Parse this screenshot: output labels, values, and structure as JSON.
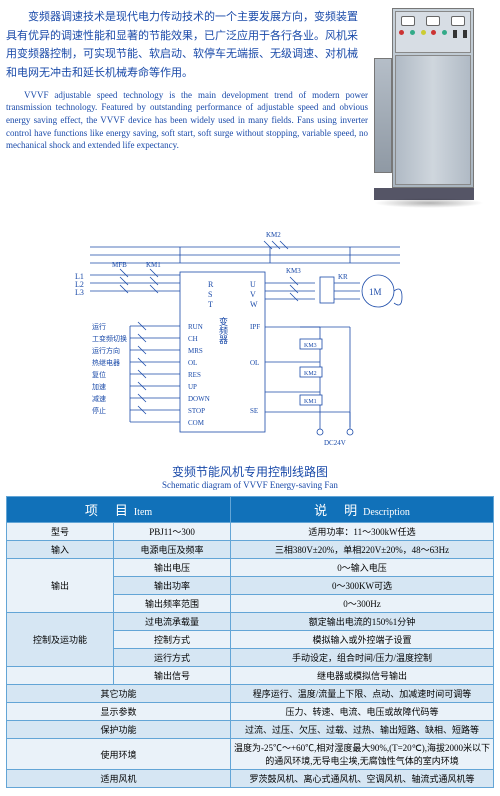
{
  "text": {
    "cn_para": "变频器调速技术是现代电力传动技术的一个主要发展方向，变频装置具有优异的调速性能和显著的节能效果，已广泛应用于各行各业。风机采用变频器控制，可实现节能、软启动、软停车无端振、无级调速、对机械和电网无冲击和延长机械寿命等作用。",
    "en_para": "VVVF adjustable speed technology is the main development trend of modern power transmission technology. Featured by outstanding performance of adjustable speed and obvious energy saving effect, the VVVF device has been widely used in many fields. Fans using inverter control have functions like energy saving, soft start, soft surge without stopping, variable speed, no mechanical shock and extended life expectancy.",
    "caption_cn": "变频节能风机专用控制线路图",
    "caption_en": "Schematic diagram of VVVF Energy-saving Fan"
  },
  "diagram": {
    "left_lines": [
      "L1",
      "L2",
      "L3"
    ],
    "top_labels": [
      "MFB",
      "KM1",
      "KM2"
    ],
    "right_labels": [
      "KM3",
      "KR",
      "1M"
    ],
    "inverter_cn": "变频器",
    "inverter_left": [
      "R",
      "S",
      "T"
    ],
    "inverter_right": [
      "U",
      "V",
      "W"
    ],
    "side_rows_cn": [
      "运行",
      "工变频切换",
      "运行方向",
      "热继电器",
      "复位",
      "加速",
      "减速",
      "停止"
    ],
    "side_rows_en": [
      "RUN",
      "CH",
      "MRS",
      "OL",
      "RES",
      "UP",
      "DOWN",
      "STOP",
      "COM"
    ],
    "out_pins": [
      "IPF",
      "OL",
      "SE"
    ],
    "relays": [
      "KM3",
      "KM2",
      "KM1"
    ],
    "dc": "DC24V",
    "colors": {
      "line": "#1a4aa9",
      "text": "#1a4aa9"
    }
  },
  "table": {
    "head_item_cn": "项　目",
    "head_item_en": "Item",
    "head_desc_cn": "说　明",
    "head_desc_en": "Description",
    "rows": [
      {
        "c1": "型号",
        "c2": "PBJ11～300",
        "c3": "适用功率：11～300kW任选",
        "cls": "odd"
      },
      {
        "c1": "输入",
        "c2": "电源电压及频率",
        "c3": "三相380V±20%，单相220V±20%，48～63Hz",
        "cls": "even"
      },
      {
        "c1": "",
        "c2": "输出电压",
        "c3": "0～输入电压",
        "cls": "odd",
        "merge_start": true,
        "merge_label": "输出",
        "merge_span": 3
      },
      {
        "c1": "",
        "c2": "输出功率",
        "c3": "0～300KW可选",
        "cls": "even"
      },
      {
        "c1": "",
        "c2": "输出频率范围",
        "c3": "0～300Hz",
        "cls": "odd"
      },
      {
        "c1": "",
        "c2": "过电流承载量",
        "c3": "额定输出电流的150%1分钟",
        "cls": "even",
        "merge_start": true,
        "merge_label": "控制及运功能",
        "merge_span": 3
      },
      {
        "c1": "",
        "c2": "控制方式",
        "c3": "模拟输入或外控端子设置",
        "cls": "odd"
      },
      {
        "c1": "",
        "c2": "运行方式",
        "c3": "手动设定，组合时间/压力/温度控制",
        "cls": "even"
      },
      {
        "c1": "",
        "c2": "输出信号",
        "c3": "继电器或模拟信号输出",
        "cls": "odd",
        "merge_start": true,
        "merge_label": "",
        "merge_span": 1
      },
      {
        "c1": "其它功能",
        "c2_span": true,
        "c3": "程序运行、温度/流量上下限、点动、加减速时间可调等",
        "cls": "even"
      },
      {
        "c1": "显示参数",
        "c2_span": true,
        "c3": "压力、转速、电流、电压或故障代码等",
        "cls": "odd"
      },
      {
        "c1": "保护功能",
        "c2_span": true,
        "c3": "过流、过压、欠压、过载、过热、输出短路、缺相、短路等",
        "cls": "even"
      },
      {
        "c1": "使用环境",
        "c2_span": true,
        "c3": "温度为-25℃～+60℃,相对湿度最大90%,(T=20℃),海拔2000米以下的通风环境,无导电尘埃,无腐蚀性气体的室内环境",
        "cls": "odd"
      },
      {
        "c1": "适用风机",
        "c2_span": true,
        "c3": "罗茨鼓风机、离心式通风机、空调风机、轴流式通风机等",
        "cls": "even"
      }
    ],
    "header_bg": "#1171b9",
    "border_color": "#63a5d6",
    "row_bg_odd": "#eaf2f9",
    "row_bg_even": "#d6e6f3"
  }
}
